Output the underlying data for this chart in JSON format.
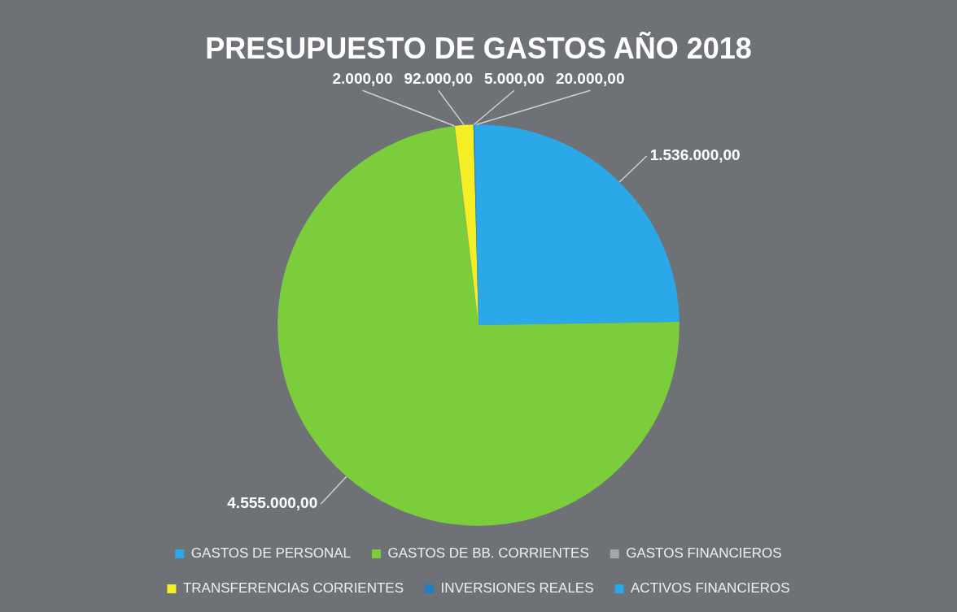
{
  "chart_data": {
    "type": "pie",
    "title": "PRESUPUESTO DE GASTOS AÑO 2018",
    "categories": [
      "GASTOS DE PERSONAL",
      "GASTOS DE BB. CORRIENTES",
      "GASTOS FINANCIEROS",
      "TRANSFERENCIAS CORRIENTES",
      "INVERSIONES REALES",
      "ACTIVOS FINANCIEROS"
    ],
    "values": [
      1536000,
      4555000,
      2000,
      92000,
      5000,
      20000
    ],
    "colors": [
      "#2aa8e8",
      "#7ccd3c",
      "#a6a6a6",
      "#f5ee24",
      "#1f7fc0",
      "#29a9ea"
    ],
    "value_labels": [
      "1.536.000,00",
      "4.555.000,00",
      "2.000,00",
      "92.000,00",
      "5.000,00",
      "20.000,00"
    ],
    "legend": "bottom"
  }
}
